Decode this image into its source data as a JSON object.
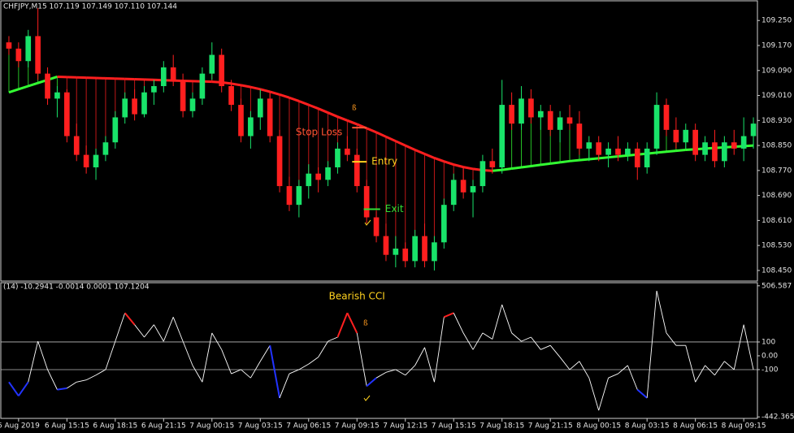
{
  "chart_data": {
    "type": "candlestick",
    "header": "CHFJPY,M15  107.119 107.149 107.110 107.144",
    "bull_color": "#19e36a",
    "bear_color": "#ff1f1f",
    "xlim": [
      -0.5,
      77.5
    ],
    "ylim": [
      108.416,
      109.313
    ],
    "yticks": [
      {
        "value": 109.25,
        "label": "109.250"
      },
      {
        "value": 109.17,
        "label": "109.170"
      },
      {
        "value": 109.09,
        "label": "109.090"
      },
      {
        "value": 109.01,
        "label": "109.010"
      },
      {
        "value": 108.93,
        "label": "108.930"
      },
      {
        "value": 108.85,
        "label": "108.850"
      },
      {
        "value": 108.77,
        "label": "108.770"
      },
      {
        "value": 108.69,
        "label": "108.690"
      },
      {
        "value": 108.61,
        "label": "108.610"
      },
      {
        "value": 108.53,
        "label": "108.530"
      },
      {
        "value": 108.45,
        "label": "108.450"
      }
    ],
    "xticks": [
      {
        "value": 1,
        "label": "6 Aug 2019"
      },
      {
        "value": 6,
        "label": "6 Aug 15:15"
      },
      {
        "value": 11,
        "label": "6 Aug 18:15"
      },
      {
        "value": 16,
        "label": "6 Aug 21:15"
      },
      {
        "value": 21,
        "label": "7 Aug 00:15"
      },
      {
        "value": 26,
        "label": "7 Aug 03:15"
      },
      {
        "value": 31,
        "label": "7 Aug 06:15"
      },
      {
        "value": 36,
        "label": "7 Aug 09:15"
      },
      {
        "value": 41,
        "label": "7 Aug 12:15"
      },
      {
        "value": 46,
        "label": "7 Aug 15:15"
      },
      {
        "value": 51,
        "label": "7 Aug 18:15"
      },
      {
        "value": 56,
        "label": "7 Aug 21:15"
      },
      {
        "value": 61,
        "label": "8 Aug 00:15"
      },
      {
        "value": 66,
        "label": "8 Aug 03:15"
      },
      {
        "value": 71,
        "label": "8 Aug 06:15"
      },
      {
        "value": 76,
        "label": "8 Aug 09:15"
      }
    ],
    "candles": [
      [
        109.18,
        109.2,
        109.14,
        109.16
      ],
      [
        109.16,
        109.18,
        109.1,
        109.12
      ],
      [
        109.12,
        109.22,
        109.1,
        109.2
      ],
      [
        109.2,
        109.29,
        109.06,
        109.08
      ],
      [
        109.08,
        109.1,
        108.98,
        109.0
      ],
      [
        109.0,
        109.04,
        108.94,
        109.02
      ],
      [
        109.02,
        109.03,
        108.86,
        108.88
      ],
      [
        108.88,
        108.92,
        108.8,
        108.82
      ],
      [
        108.82,
        108.85,
        108.76,
        108.78
      ],
      [
        108.78,
        108.84,
        108.74,
        108.82
      ],
      [
        108.82,
        108.88,
        108.8,
        108.86
      ],
      [
        108.86,
        108.96,
        108.84,
        108.94
      ],
      [
        108.94,
        109.02,
        108.92,
        109.0
      ],
      [
        109.0,
        109.03,
        108.93,
        108.95
      ],
      [
        108.95,
        109.04,
        108.94,
        109.02
      ],
      [
        109.02,
        109.06,
        108.98,
        109.04
      ],
      [
        109.04,
        109.12,
        109.02,
        109.1
      ],
      [
        109.1,
        109.14,
        109.04,
        109.06
      ],
      [
        109.06,
        109.08,
        108.94,
        108.96
      ],
      [
        108.96,
        109.02,
        108.94,
        109.0
      ],
      [
        109.0,
        109.1,
        108.98,
        109.08
      ],
      [
        109.08,
        109.18,
        109.06,
        109.14
      ],
      [
        109.14,
        109.16,
        109.02,
        109.04
      ],
      [
        109.04,
        109.06,
        108.96,
        108.98
      ],
      [
        108.98,
        109.0,
        108.86,
        108.88
      ],
      [
        108.88,
        108.96,
        108.84,
        108.94
      ],
      [
        108.94,
        109.03,
        108.9,
        109.0
      ],
      [
        109.0,
        109.02,
        108.86,
        108.88
      ],
      [
        108.88,
        108.9,
        108.7,
        108.72
      ],
      [
        108.72,
        108.75,
        108.64,
        108.66
      ],
      [
        108.66,
        108.74,
        108.62,
        108.72
      ],
      [
        108.72,
        108.79,
        108.68,
        108.76
      ],
      [
        108.76,
        108.78,
        108.7,
        108.74
      ],
      [
        108.74,
        108.8,
        108.72,
        108.78
      ],
      [
        108.78,
        108.86,
        108.76,
        108.84
      ],
      [
        108.84,
        108.88,
        108.8,
        108.82
      ],
      [
        108.82,
        108.84,
        108.7,
        108.72
      ],
      [
        108.72,
        108.74,
        108.6,
        108.62
      ],
      [
        108.62,
        108.64,
        108.54,
        108.56
      ],
      [
        108.56,
        108.6,
        108.48,
        108.5
      ],
      [
        108.5,
        108.56,
        108.46,
        108.52
      ],
      [
        108.52,
        108.54,
        108.46,
        108.48
      ],
      [
        108.48,
        108.58,
        108.46,
        108.56
      ],
      [
        108.56,
        108.6,
        108.46,
        108.48
      ],
      [
        108.48,
        108.56,
        108.45,
        108.54
      ],
      [
        108.54,
        108.68,
        108.52,
        108.66
      ],
      [
        108.66,
        108.76,
        108.64,
        108.74
      ],
      [
        108.74,
        108.78,
        108.68,
        108.7
      ],
      [
        108.7,
        108.74,
        108.62,
        108.72
      ],
      [
        108.72,
        108.82,
        108.7,
        108.8
      ],
      [
        108.8,
        108.84,
        108.76,
        108.78
      ],
      [
        108.78,
        109.06,
        108.76,
        108.98
      ],
      [
        108.98,
        109.02,
        108.9,
        108.92
      ],
      [
        108.92,
        109.04,
        108.9,
        109.0
      ],
      [
        109.0,
        109.03,
        108.92,
        108.94
      ],
      [
        108.94,
        108.98,
        108.9,
        108.96
      ],
      [
        108.96,
        108.98,
        108.88,
        108.9
      ],
      [
        108.9,
        108.96,
        108.86,
        108.94
      ],
      [
        108.94,
        108.98,
        108.9,
        108.92
      ],
      [
        108.92,
        108.96,
        108.82,
        108.84
      ],
      [
        108.84,
        108.88,
        108.8,
        108.86
      ],
      [
        108.86,
        108.88,
        108.8,
        108.82
      ],
      [
        108.82,
        108.86,
        108.78,
        108.84
      ],
      [
        108.84,
        108.88,
        108.8,
        108.82
      ],
      [
        108.82,
        108.86,
        108.8,
        108.84
      ],
      [
        108.84,
        108.86,
        108.74,
        108.78
      ],
      [
        108.78,
        108.86,
        108.76,
        108.84
      ],
      [
        108.84,
        109.02,
        108.82,
        108.98
      ],
      [
        108.98,
        109.0,
        108.88,
        108.9
      ],
      [
        108.9,
        108.94,
        108.84,
        108.86
      ],
      [
        108.86,
        108.92,
        108.84,
        108.9
      ],
      [
        108.9,
        108.92,
        108.8,
        108.82
      ],
      [
        108.82,
        108.88,
        108.8,
        108.86
      ],
      [
        108.86,
        108.9,
        108.78,
        108.8
      ],
      [
        108.8,
        108.88,
        108.78,
        108.86
      ],
      [
        108.86,
        108.9,
        108.82,
        108.84
      ],
      [
        108.84,
        108.94,
        108.8,
        108.88
      ],
      [
        108.88,
        108.94,
        108.84,
        108.92
      ]
    ],
    "ma": {
      "up_color": "#33ff33",
      "down_color": "#ff1f1f",
      "values": [
        109.02,
        109.03,
        109.04,
        109.05,
        109.06,
        109.07,
        109.069,
        109.068,
        109.067,
        109.066,
        109.065,
        109.064,
        109.063,
        109.062,
        109.061,
        109.06,
        109.059,
        109.058,
        109.057,
        109.056,
        109.055,
        109.054,
        109.052,
        109.048,
        109.043,
        109.037,
        109.03,
        109.022,
        109.013,
        109.003,
        108.992,
        108.98,
        108.968,
        108.955,
        108.942,
        108.93,
        108.918,
        108.905,
        108.892,
        108.878,
        108.864,
        108.85,
        108.836,
        108.823,
        108.81,
        108.799,
        108.789,
        108.781,
        108.775,
        108.771,
        108.769,
        108.772,
        108.776,
        108.78,
        108.784,
        108.788,
        108.792,
        108.796,
        108.8,
        108.803,
        108.806,
        108.809,
        108.812,
        108.815,
        108.818,
        108.821,
        108.824,
        108.827,
        108.83,
        108.833,
        108.836,
        108.838,
        108.84,
        108.842,
        108.844,
        108.846,
        108.848,
        108.85
      ]
    },
    "annotations": [
      {
        "text": "Stop Loss",
        "color": "#ff5533",
        "price": 108.907,
        "from": 35.5,
        "to": 37,
        "side": "left"
      },
      {
        "text": "Entry",
        "color": "#ffd21f",
        "price": 108.798,
        "from": 35.5,
        "to": 37,
        "side": "right"
      },
      {
        "text": "Exit",
        "color": "#33dd33",
        "price": 108.646,
        "from": 36.7,
        "to": 38.4,
        "side": "right"
      }
    ],
    "cci": {
      "header": "(14) -10.2941 -0.0014 0.0001 107.1204",
      "title": "Bearish CCI",
      "title_color": "#ffd21f",
      "title_at": 36,
      "color": "#ffffff",
      "ylim": [
        -453,
        529
      ],
      "yticks": [
        506.587,
        100,
        {
          "value": 0,
          "label": "0.00"
        },
        -100,
        -442.3655
      ],
      "level_lines": [
        100,
        -100
      ],
      "highlights": [
        {
          "from": 0,
          "to": 2,
          "color": "#2233ff"
        },
        {
          "from": 5,
          "to": 6,
          "color": "#2233ff"
        },
        {
          "from": 12,
          "to": 13,
          "color": "#ff2020"
        },
        {
          "from": 27,
          "to": 28,
          "color": "#2233ff"
        },
        {
          "from": 34,
          "to": 36,
          "color": "#ff2020"
        },
        {
          "from": 37,
          "to": 38,
          "color": "#2233ff"
        },
        {
          "from": 45,
          "to": 46,
          "color": "#ff2020"
        },
        {
          "from": 65,
          "to": 66,
          "color": "#2233ff"
        }
      ],
      "values": [
        -190,
        -290,
        -190,
        105,
        -100,
        -245,
        -235,
        -190,
        -175,
        -140,
        -100,
        105,
        310,
        225,
        135,
        225,
        105,
        280,
        105,
        -70,
        -190,
        165,
        45,
        -130,
        -100,
        -160,
        -40,
        75,
        -305,
        -130,
        -100,
        -60,
        -10,
        105,
        135,
        310,
        165,
        -220,
        -160,
        -120,
        -100,
        -140,
        -70,
        60,
        -190,
        280,
        310,
        165,
        45,
        165,
        120,
        370,
        165,
        105,
        135,
        45,
        75,
        -10,
        -100,
        -40,
        -160,
        -395,
        -160,
        -130,
        -70,
        -245,
        -305,
        470,
        165,
        75,
        75,
        -190,
        -70,
        -140,
        -40,
        -100,
        225,
        -100
      ]
    }
  }
}
